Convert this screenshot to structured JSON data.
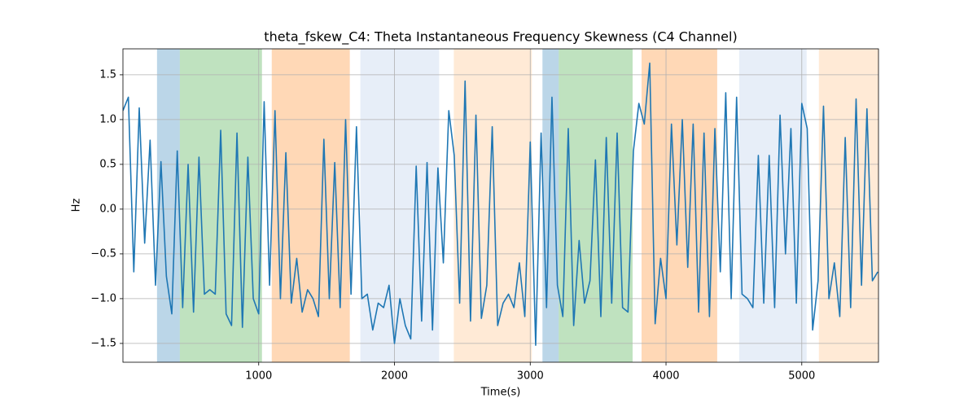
{
  "chart_data": {
    "type": "line",
    "title": "theta_fskew_C4: Theta Instantaneous Frequency Skewness (C4 Channel)",
    "xlabel": "Time(s)",
    "ylabel": "Hz",
    "xlim": [
      0,
      5565
    ],
    "ylim": [
      -1.71,
      1.79
    ],
    "xticks": [
      1000,
      2000,
      3000,
      4000,
      5000
    ],
    "yticks": [
      {
        "value": -1.5,
        "label": "−1.5"
      },
      {
        "value": -1.0,
        "label": "−1.0"
      },
      {
        "value": -0.5,
        "label": "−0.5"
      },
      {
        "value": 0,
        "label": "0.0"
      },
      0.5,
      {
        "value": 1.0,
        "label": "1.0"
      },
      1.5
    ],
    "grid": true,
    "spans": [
      {
        "start": 251,
        "end": 419,
        "color": "#1f77b4",
        "alpha": 0.3
      },
      {
        "start": 419,
        "end": 1024,
        "color": "#2ca02c",
        "alpha": 0.3
      },
      {
        "start": 1096,
        "end": 1671,
        "color": "#ff7f0e",
        "alpha": 0.3
      },
      {
        "start": 1749,
        "end": 2329,
        "color": "#aec7e8",
        "alpha": 0.3
      },
      {
        "start": 2437,
        "end": 3012,
        "color": "#ffbb78",
        "alpha": 0.3
      },
      {
        "start": 3090,
        "end": 3210,
        "color": "#1f77b4",
        "alpha": 0.3
      },
      {
        "start": 3210,
        "end": 3754,
        "color": "#2ca02c",
        "alpha": 0.3
      },
      {
        "start": 3820,
        "end": 4377,
        "color": "#ff7f0e",
        "alpha": 0.3
      },
      {
        "start": 4539,
        "end": 5036,
        "color": "#aec7e8",
        "alpha": 0.3
      },
      {
        "start": 5126,
        "end": 5565,
        "color": "#ffbb78",
        "alpha": 0.3
      }
    ],
    "x": [
      0,
      40,
      80,
      120,
      160,
      200,
      240,
      280,
      320,
      360,
      400,
      440,
      480,
      520,
      560,
      600,
      640,
      680,
      720,
      760,
      800,
      840,
      880,
      920,
      960,
      1000,
      1040,
      1080,
      1120,
      1160,
      1200,
      1240,
      1280,
      1320,
      1360,
      1400,
      1440,
      1480,
      1520,
      1560,
      1600,
      1640,
      1680,
      1720,
      1760,
      1800,
      1840,
      1880,
      1920,
      1960,
      2000,
      2040,
      2080,
      2120,
      2160,
      2200,
      2240,
      2280,
      2320,
      2360,
      2400,
      2440,
      2480,
      2520,
      2560,
      2600,
      2640,
      2680,
      2720,
      2760,
      2800,
      2840,
      2880,
      2920,
      2960,
      3000,
      3040,
      3080,
      3120,
      3160,
      3200,
      3240,
      3280,
      3320,
      3360,
      3400,
      3440,
      3480,
      3520,
      3560,
      3600,
      3640,
      3680,
      3720,
      3760,
      3800,
      3840,
      3880,
      3920,
      3960,
      4000,
      4040,
      4080,
      4120,
      4160,
      4200,
      4240,
      4280,
      4320,
      4360,
      4400,
      4440,
      4480,
      4520,
      4560,
      4600,
      4640,
      4680,
      4720,
      4760,
      4800,
      4840,
      4880,
      4920,
      4960,
      5000,
      5040,
      5080,
      5120,
      5160,
      5200,
      5240,
      5280,
      5320,
      5360,
      5400,
      5440,
      5480,
      5520,
      5560
    ],
    "series": [
      {
        "name": "theta_fskew_C4",
        "color": "#1f77b4",
        "values": [
          1.1,
          1.25,
          -0.7,
          1.13,
          -0.38,
          0.77,
          -0.85,
          0.53,
          -0.75,
          -1.17,
          0.65,
          -1.1,
          0.5,
          -1.15,
          0.58,
          -0.95,
          -0.9,
          -0.95,
          0.88,
          -1.17,
          -1.3,
          0.85,
          -1.32,
          0.58,
          -1.0,
          -1.17,
          1.2,
          -0.85,
          1.1,
          -1.0,
          0.63,
          -1.05,
          -0.55,
          -1.15,
          -0.9,
          -1.0,
          -1.2,
          0.78,
          -1.0,
          0.52,
          -1.1,
          1.0,
          -0.95,
          0.92,
          -1.0,
          -0.95,
          -1.35,
          -1.05,
          -1.1,
          -0.85,
          -1.5,
          -1.0,
          -1.3,
          -1.45,
          0.48,
          -1.25,
          0.52,
          -1.35,
          0.46,
          -0.6,
          1.1,
          0.6,
          -1.05,
          1.43,
          -1.25,
          1.05,
          -1.22,
          -0.85,
          0.92,
          -1.3,
          -1.05,
          -0.95,
          -1.1,
          -0.6,
          -1.2,
          0.75,
          -1.52,
          0.85,
          -1.1,
          1.25,
          -0.85,
          -1.2,
          0.9,
          -1.3,
          -0.35,
          -1.05,
          -0.8,
          0.55,
          -1.2,
          0.8,
          -1.05,
          0.85,
          -1.1,
          -1.15,
          0.65,
          1.18,
          0.95,
          1.63,
          -1.28,
          -0.55,
          -1.0,
          0.95,
          -0.4,
          1.0,
          -0.65,
          0.95,
          -1.15,
          0.85,
          -1.2,
          0.9,
          -0.7,
          1.3,
          -1.0,
          1.25,
          -0.95,
          -1.0,
          -1.1,
          0.6,
          -1.05,
          0.6,
          -1.1,
          1.05,
          -0.5,
          0.9,
          -1.05,
          1.18,
          0.9,
          -1.35,
          -0.8,
          1.15,
          -1.0,
          -0.6,
          -1.2,
          0.8,
          -1.1,
          1.23,
          -0.85,
          1.12,
          -0.8,
          -0.7
        ]
      }
    ]
  }
}
